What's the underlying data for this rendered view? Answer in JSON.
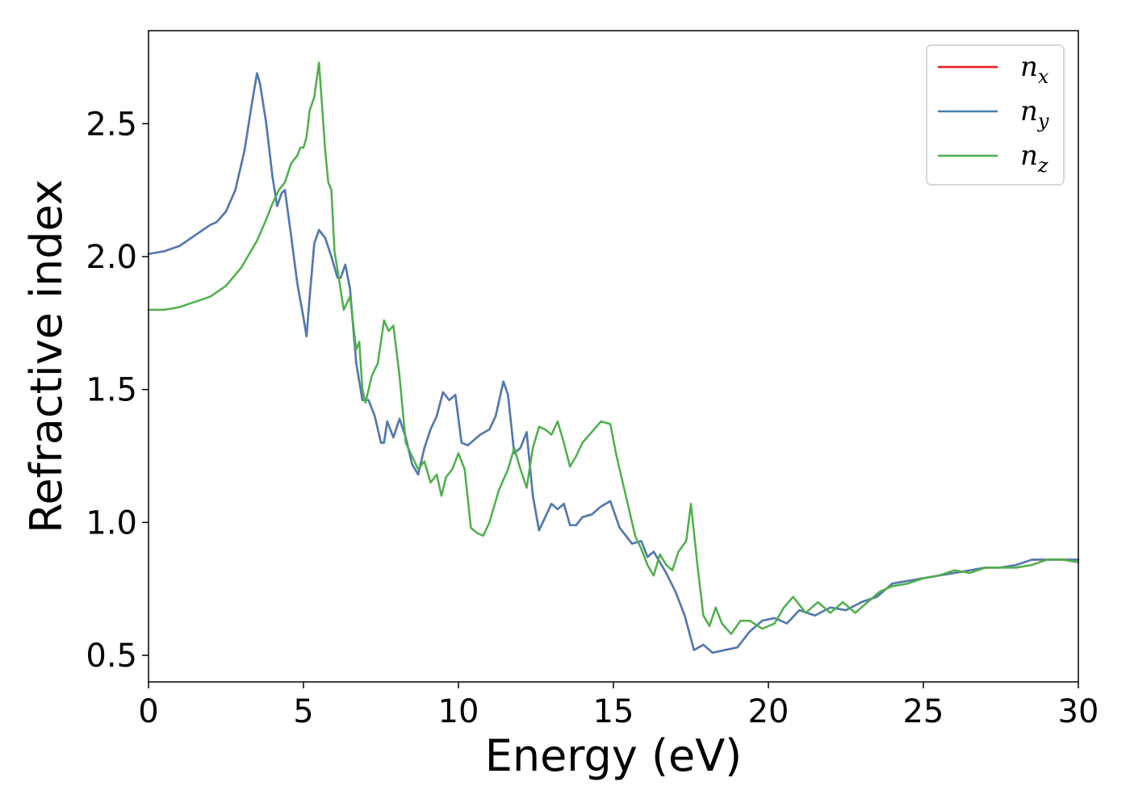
{
  "chart_data": {
    "type": "line",
    "xlabel": "Energy (eV)",
    "ylabel": "Refractive index",
    "xlim": [
      0,
      30
    ],
    "ylim": [
      0.4,
      2.85
    ],
    "xticks": [
      "0",
      "5",
      "10",
      "15",
      "20",
      "25",
      "30"
    ],
    "xtick_values": [
      0,
      5,
      10,
      15,
      20,
      25,
      30
    ],
    "yticks": [
      "0.5",
      "1.0",
      "1.5",
      "2.0",
      "2.5"
    ],
    "ytick_values": [
      0.5,
      1.0,
      1.5,
      2.0,
      2.5
    ],
    "grid": false,
    "legend_position": "top-right",
    "series": [
      {
        "name": "n_x",
        "legend_base": "n",
        "legend_sub": "x",
        "color": "#e41a1c",
        "x": [
          0,
          0.5,
          1,
          1.5,
          2,
          2.2,
          2.5,
          2.8,
          3.1,
          3.3,
          3.5,
          3.6,
          3.8,
          4.0,
          4.15,
          4.3,
          4.4,
          4.6,
          4.8,
          5.0,
          5.1,
          5.2,
          5.35,
          5.5,
          5.7,
          5.9,
          6.1,
          6.2,
          6.35,
          6.5,
          6.7,
          6.9,
          7.1,
          7.3,
          7.5,
          7.6,
          7.7,
          7.9,
          8.1,
          8.3,
          8.5,
          8.7,
          8.9,
          9.1,
          9.3,
          9.5,
          9.7,
          9.9,
          10.1,
          10.3,
          10.5,
          10.7,
          11.0,
          11.2,
          11.45,
          11.6,
          11.8,
          12.0,
          12.2,
          12.4,
          12.6,
          12.8,
          13.0,
          13.2,
          13.4,
          13.6,
          13.8,
          14.0,
          14.3,
          14.6,
          14.9,
          15.2,
          15.6,
          15.9,
          16.1,
          16.3,
          16.5,
          16.7,
          17.0,
          17.3,
          17.6,
          17.9,
          18.2,
          18.6,
          19.0,
          19.4,
          19.8,
          20.2,
          20.6,
          21.0,
          21.5,
          22.0,
          22.5,
          23.0,
          23.5,
          24.0,
          24.5,
          25.0,
          25.5,
          26.0,
          26.5,
          27.0,
          27.5,
          28.0,
          28.5,
          29.0,
          29.5,
          30.0
        ],
        "y": [
          2.01,
          2.02,
          2.04,
          2.08,
          2.12,
          2.13,
          2.17,
          2.25,
          2.4,
          2.55,
          2.69,
          2.65,
          2.5,
          2.3,
          2.19,
          2.24,
          2.25,
          2.08,
          1.9,
          1.77,
          1.7,
          1.85,
          2.05,
          2.1,
          2.07,
          2.0,
          1.92,
          1.92,
          1.97,
          1.88,
          1.6,
          1.46,
          1.46,
          1.4,
          1.3,
          1.3,
          1.38,
          1.32,
          1.39,
          1.32,
          1.22,
          1.18,
          1.28,
          1.35,
          1.4,
          1.49,
          1.46,
          1.48,
          1.3,
          1.29,
          1.31,
          1.33,
          1.35,
          1.4,
          1.53,
          1.48,
          1.26,
          1.28,
          1.34,
          1.1,
          0.97,
          1.02,
          1.07,
          1.05,
          1.07,
          0.99,
          0.99,
          1.02,
          1.03,
          1.06,
          1.08,
          0.98,
          0.92,
          0.93,
          0.87,
          0.89,
          0.85,
          0.81,
          0.74,
          0.65,
          0.52,
          0.54,
          0.51,
          0.52,
          0.53,
          0.59,
          0.63,
          0.64,
          0.62,
          0.67,
          0.65,
          0.68,
          0.67,
          0.7,
          0.72,
          0.77,
          0.78,
          0.79,
          0.8,
          0.81,
          0.82,
          0.83,
          0.83,
          0.84,
          0.86,
          0.86,
          0.86,
          0.86
        ]
      },
      {
        "name": "n_y",
        "legend_base": "n",
        "legend_sub": "y",
        "color": "#4a7db5",
        "x": [
          0,
          0.5,
          1,
          1.5,
          2,
          2.2,
          2.5,
          2.8,
          3.1,
          3.3,
          3.5,
          3.6,
          3.8,
          4.0,
          4.15,
          4.3,
          4.4,
          4.6,
          4.8,
          5.0,
          5.1,
          5.2,
          5.35,
          5.5,
          5.7,
          5.9,
          6.1,
          6.2,
          6.35,
          6.5,
          6.7,
          6.9,
          7.1,
          7.3,
          7.5,
          7.6,
          7.7,
          7.9,
          8.1,
          8.3,
          8.5,
          8.7,
          8.9,
          9.1,
          9.3,
          9.5,
          9.7,
          9.9,
          10.1,
          10.3,
          10.5,
          10.7,
          11.0,
          11.2,
          11.45,
          11.6,
          11.8,
          12.0,
          12.2,
          12.4,
          12.6,
          12.8,
          13.0,
          13.2,
          13.4,
          13.6,
          13.8,
          14.0,
          14.3,
          14.6,
          14.9,
          15.2,
          15.6,
          15.9,
          16.1,
          16.3,
          16.5,
          16.7,
          17.0,
          17.3,
          17.6,
          17.9,
          18.2,
          18.6,
          19.0,
          19.4,
          19.8,
          20.2,
          20.6,
          21.0,
          21.5,
          22.0,
          22.5,
          23.0,
          23.5,
          24.0,
          24.5,
          25.0,
          25.5,
          26.0,
          26.5,
          27.0,
          27.5,
          28.0,
          28.5,
          29.0,
          29.5,
          30.0
        ],
        "y": [
          2.01,
          2.02,
          2.04,
          2.08,
          2.12,
          2.13,
          2.17,
          2.25,
          2.4,
          2.55,
          2.69,
          2.65,
          2.5,
          2.3,
          2.19,
          2.24,
          2.25,
          2.08,
          1.9,
          1.77,
          1.7,
          1.85,
          2.05,
          2.1,
          2.07,
          2.0,
          1.92,
          1.92,
          1.97,
          1.88,
          1.6,
          1.46,
          1.46,
          1.4,
          1.3,
          1.3,
          1.38,
          1.32,
          1.39,
          1.32,
          1.22,
          1.18,
          1.28,
          1.35,
          1.4,
          1.49,
          1.46,
          1.48,
          1.3,
          1.29,
          1.31,
          1.33,
          1.35,
          1.4,
          1.53,
          1.48,
          1.26,
          1.28,
          1.34,
          1.1,
          0.97,
          1.02,
          1.07,
          1.05,
          1.07,
          0.99,
          0.99,
          1.02,
          1.03,
          1.06,
          1.08,
          0.98,
          0.92,
          0.93,
          0.87,
          0.89,
          0.85,
          0.81,
          0.74,
          0.65,
          0.52,
          0.54,
          0.51,
          0.52,
          0.53,
          0.59,
          0.63,
          0.64,
          0.62,
          0.67,
          0.65,
          0.68,
          0.67,
          0.7,
          0.72,
          0.77,
          0.78,
          0.79,
          0.8,
          0.81,
          0.82,
          0.83,
          0.83,
          0.84,
          0.86,
          0.86,
          0.86,
          0.86
        ]
      },
      {
        "name": "n_z",
        "legend_base": "n",
        "legend_sub": "z",
        "color": "#4daf4a",
        "x": [
          0,
          0.5,
          1,
          1.5,
          2,
          2.5,
          3,
          3.5,
          3.8,
          4.0,
          4.2,
          4.4,
          4.6,
          4.8,
          4.9,
          5.0,
          5.1,
          5.2,
          5.35,
          5.5,
          5.7,
          5.8,
          5.9,
          6.0,
          6.1,
          6.3,
          6.5,
          6.7,
          6.8,
          6.9,
          7.0,
          7.2,
          7.4,
          7.6,
          7.75,
          7.9,
          8.1,
          8.3,
          8.5,
          8.7,
          8.9,
          9.1,
          9.3,
          9.45,
          9.6,
          9.8,
          10.0,
          10.2,
          10.4,
          10.6,
          10.8,
          11.0,
          11.3,
          11.6,
          11.8,
          12.0,
          12.2,
          12.4,
          12.6,
          12.8,
          13.0,
          13.2,
          13.4,
          13.6,
          13.8,
          14.0,
          14.3,
          14.6,
          14.9,
          15.1,
          15.4,
          15.7,
          15.9,
          16.1,
          16.3,
          16.5,
          16.7,
          16.9,
          17.1,
          17.35,
          17.5,
          17.7,
          17.9,
          18.1,
          18.3,
          18.5,
          18.8,
          19.1,
          19.4,
          19.8,
          20.2,
          20.5,
          20.8,
          21.2,
          21.6,
          22.0,
          22.4,
          22.8,
          23.2,
          23.6,
          24.0,
          24.5,
          25.0,
          25.5,
          26.0,
          26.5,
          27.0,
          27.5,
          28.0,
          28.5,
          29.0,
          29.5,
          30.0
        ],
        "y": [
          1.8,
          1.8,
          1.81,
          1.83,
          1.85,
          1.89,
          1.96,
          2.06,
          2.14,
          2.2,
          2.25,
          2.28,
          2.35,
          2.38,
          2.41,
          2.41,
          2.45,
          2.55,
          2.6,
          2.73,
          2.4,
          2.28,
          2.25,
          2.02,
          1.95,
          1.8,
          1.85,
          1.65,
          1.68,
          1.5,
          1.45,
          1.55,
          1.6,
          1.76,
          1.72,
          1.74,
          1.55,
          1.3,
          1.25,
          1.2,
          1.23,
          1.15,
          1.18,
          1.1,
          1.17,
          1.2,
          1.26,
          1.2,
          0.98,
          0.96,
          0.95,
          1.0,
          1.12,
          1.2,
          1.28,
          1.2,
          1.13,
          1.28,
          1.36,
          1.35,
          1.33,
          1.38,
          1.3,
          1.21,
          1.25,
          1.3,
          1.34,
          1.38,
          1.37,
          1.25,
          1.1,
          0.95,
          0.9,
          0.84,
          0.8,
          0.88,
          0.84,
          0.82,
          0.89,
          0.93,
          1.07,
          0.85,
          0.65,
          0.61,
          0.68,
          0.62,
          0.58,
          0.63,
          0.63,
          0.6,
          0.62,
          0.68,
          0.72,
          0.66,
          0.7,
          0.66,
          0.7,
          0.66,
          0.7,
          0.74,
          0.76,
          0.77,
          0.79,
          0.8,
          0.82,
          0.81,
          0.83,
          0.83,
          0.83,
          0.84,
          0.86,
          0.86,
          0.85
        ]
      }
    ]
  }
}
